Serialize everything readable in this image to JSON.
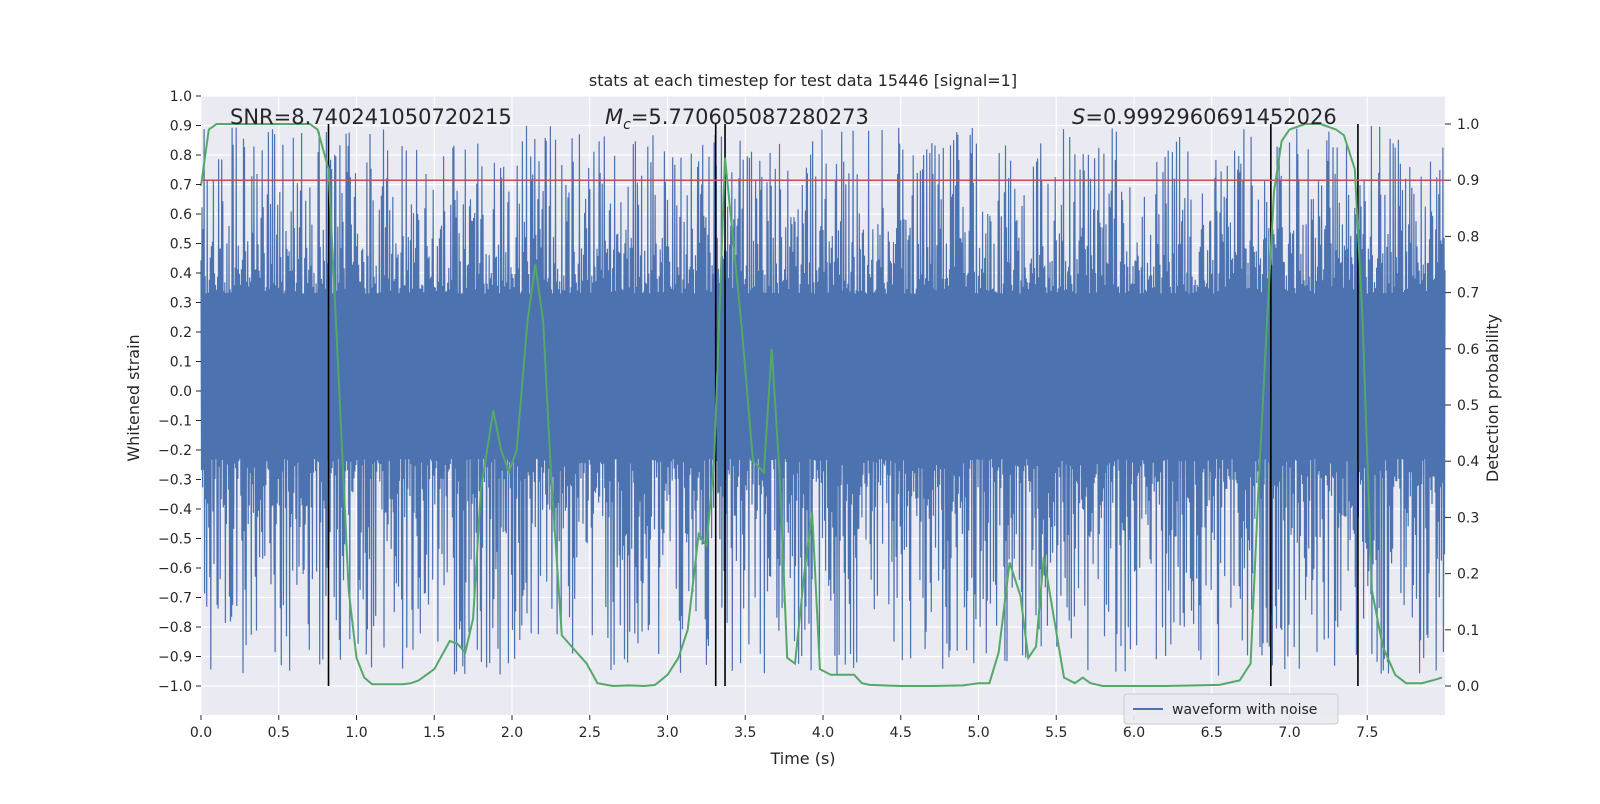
{
  "chart_data": {
    "type": "line",
    "title": "stats at each timestep for test data 15446 [signal=1]",
    "xlabel": "Time (s)",
    "ylabel": "Whitened strain",
    "y2label": "Detection probability",
    "xlim": [
      0.0,
      8.0
    ],
    "ylim": [
      -1.0,
      1.0
    ],
    "y2lim": [
      0.0,
      1.0
    ],
    "x_ticks": [
      0.0,
      0.5,
      1.0,
      1.5,
      2.0,
      2.5,
      3.0,
      3.5,
      4.0,
      4.5,
      5.0,
      5.5,
      6.0,
      6.5,
      7.0,
      7.5
    ],
    "x_tick_labels": [
      "0.0",
      "0.5",
      "1.0",
      "1.5",
      "2.0",
      "2.5",
      "3.0",
      "3.5",
      "4.0",
      "4.5",
      "5.0",
      "5.5",
      "6.0",
      "6.5",
      "7.0",
      "7.5"
    ],
    "y_ticks": [
      1.0,
      0.9,
      0.8,
      0.7,
      0.6,
      0.5,
      0.4,
      0.3,
      0.2,
      0.1,
      0.0,
      -0.1,
      -0.2,
      -0.3,
      -0.4,
      -0.5,
      -0.6,
      -0.7,
      -0.8,
      -0.9,
      -1.0
    ],
    "y_tick_labels": [
      "1.0",
      "0.9",
      "0.8",
      "0.7",
      "0.6",
      "0.5",
      "0.4",
      "0.3",
      "0.2",
      "0.1",
      "0.0",
      "−0.1",
      "−0.2",
      "−0.3",
      "−0.4",
      "−0.5",
      "−0.6",
      "−0.7",
      "−0.8",
      "−0.9",
      "−1.0"
    ],
    "y2_ticks": [
      1.0,
      0.9,
      0.8,
      0.7,
      0.6,
      0.5,
      0.4,
      0.3,
      0.2,
      0.1,
      0.0
    ],
    "y2_tick_labels": [
      "1.0",
      "0.9",
      "0.8",
      "0.7",
      "0.6",
      "0.5",
      "0.4",
      "0.3",
      "0.2",
      "0.1",
      "0.0"
    ],
    "annotations": {
      "snr": "SNR=8.740241050720215",
      "mc_symbol": "M",
      "mc_sub": "c",
      "mc_value": "=5.770605087280273",
      "s_symbol": "S",
      "s_value": "=0.9992960691452026"
    },
    "legend": {
      "label": "waveform with noise",
      "loc": "lower-right"
    },
    "threshold": {
      "value": 0.9,
      "axis": "y2",
      "color": "#c44e52"
    },
    "vlines": [
      0.82,
      3.31,
      3.37,
      6.88,
      7.44
    ],
    "waveform": {
      "name": "waveform with noise",
      "color": "#4c72b0",
      "envelope_core": [
        -0.23,
        0.33
      ],
      "typical_max": 0.9,
      "typical_min": -0.97,
      "note": "dense noisy strain series sampled across 0-8 s"
    },
    "detection_probability": {
      "name": "Detection probability",
      "color": "#55a868",
      "x": [
        0.0,
        0.05,
        0.1,
        0.15,
        0.2,
        0.3,
        0.4,
        0.5,
        0.6,
        0.7,
        0.75,
        0.82,
        0.88,
        0.95,
        1.0,
        1.05,
        1.1,
        1.2,
        1.3,
        1.35,
        1.4,
        1.5,
        1.6,
        1.65,
        1.7,
        1.75,
        1.8,
        1.88,
        1.93,
        1.98,
        2.03,
        2.1,
        2.15,
        2.2,
        2.25,
        2.32,
        2.4,
        2.48,
        2.55,
        2.65,
        2.75,
        2.85,
        2.92,
        3.0,
        3.07,
        3.13,
        3.2,
        3.25,
        3.3,
        3.37,
        3.42,
        3.48,
        3.55,
        3.62,
        3.67,
        3.72,
        3.77,
        3.82,
        3.88,
        3.93,
        3.98,
        4.05,
        4.2,
        4.25,
        4.3,
        4.5,
        4.7,
        4.9,
        5.0,
        5.07,
        5.13,
        5.2,
        5.27,
        5.32,
        5.37,
        5.42,
        5.48,
        5.55,
        5.62,
        5.67,
        5.72,
        5.8,
        5.9,
        6.0,
        6.1,
        6.2,
        6.4,
        6.55,
        6.68,
        6.75,
        6.8,
        6.85,
        6.9,
        6.95,
        7.0,
        7.1,
        7.2,
        7.3,
        7.35,
        7.42,
        7.47,
        7.53,
        7.6,
        7.68,
        7.75,
        7.85,
        7.92,
        7.98
      ],
      "values": [
        0.89,
        0.99,
        1.0,
        1.0,
        1.0,
        1.0,
        1.0,
        1.0,
        1.0,
        1.0,
        0.99,
        0.92,
        0.58,
        0.17,
        0.05,
        0.015,
        0.003,
        0.003,
        0.003,
        0.005,
        0.01,
        0.03,
        0.08,
        0.075,
        0.06,
        0.12,
        0.35,
        0.49,
        0.42,
        0.38,
        0.42,
        0.65,
        0.75,
        0.65,
        0.38,
        0.09,
        0.065,
        0.04,
        0.005,
        0.0,
        0.001,
        0.0,
        0.002,
        0.02,
        0.05,
        0.1,
        0.27,
        0.25,
        0.4,
        0.94,
        0.8,
        0.63,
        0.4,
        0.38,
        0.6,
        0.38,
        0.05,
        0.04,
        0.2,
        0.31,
        0.03,
        0.02,
        0.02,
        0.005,
        0.002,
        0.0,
        0.0,
        0.001,
        0.005,
        0.005,
        0.06,
        0.22,
        0.16,
        0.05,
        0.07,
        0.23,
        0.13,
        0.015,
        0.005,
        0.015,
        0.005,
        0.0,
        0.0,
        0.0,
        0.0,
        0.0,
        0.001,
        0.002,
        0.01,
        0.04,
        0.35,
        0.62,
        0.88,
        0.97,
        0.99,
        1.0,
        1.0,
        0.99,
        0.98,
        0.92,
        0.65,
        0.17,
        0.07,
        0.02,
        0.005,
        0.005,
        0.01,
        0.015
      ]
    }
  }
}
